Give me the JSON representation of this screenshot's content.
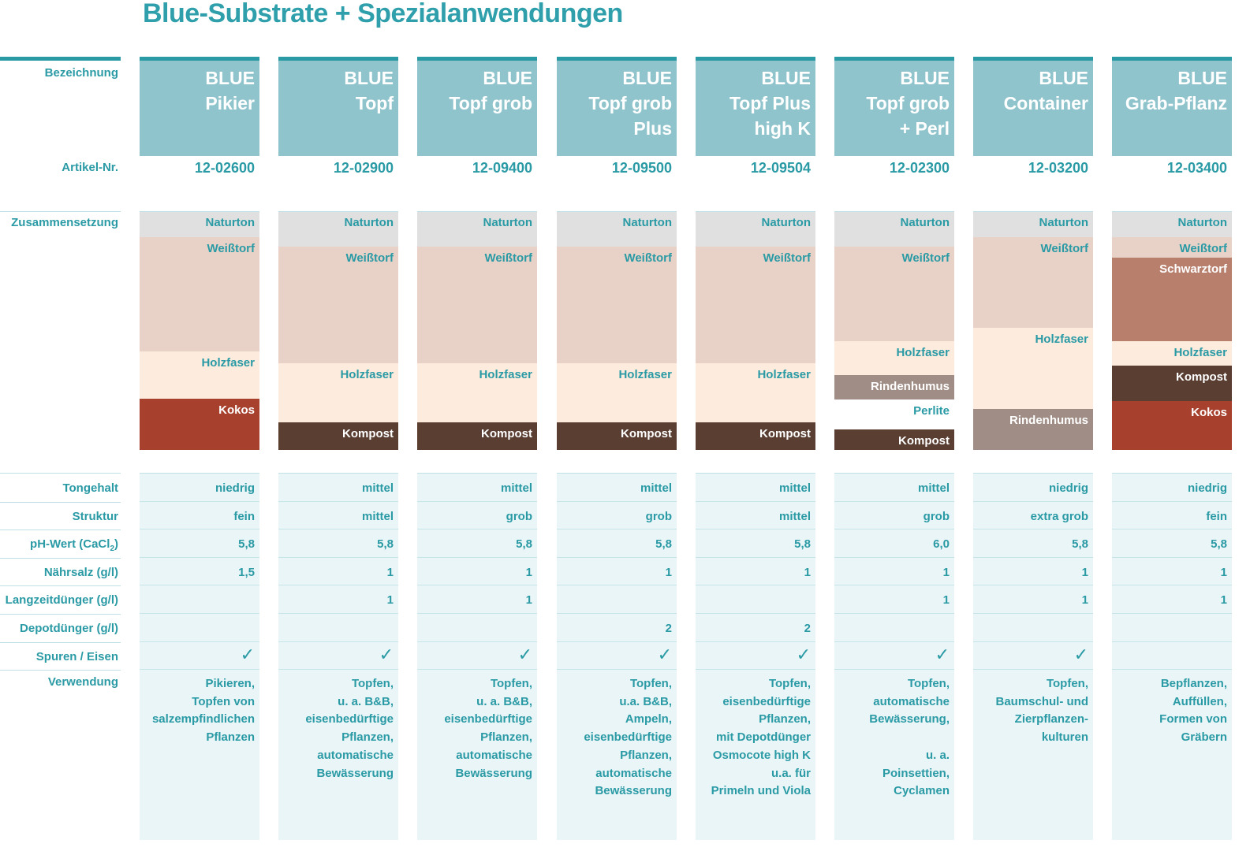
{
  "title": "Blue-Substrate + Spezialanwendungen",
  "labels": {
    "bezeichnung": "Bezeichnung",
    "artikel": "Artikel-Nr.",
    "zusammensetzung": "Zusammensetzung",
    "tongehalt": "Tongehalt",
    "struktur": "Struktur",
    "ph": "pH-Wert  (CaCl",
    "ph_sub": "2",
    "ph_end": ")",
    "naehrsalz": "Nährsalz (g/l)",
    "langzeit": "Langzeitdünger (g/l)",
    "depot": "Depotdünger (g/l)",
    "spuren": "Spuren / Eisen",
    "verwendung": "Verwendung"
  },
  "layer_colors": {
    "Naturton": "#e0e0e0",
    "Weißtorf": "#e8d2c8",
    "Holzfaser": "#fdebdd",
    "Kokos": "#a8402e",
    "Kompost": "#5a3e32",
    "Rindenhumus": "#a08e86",
    "Perlite": "#ffffff",
    "Schwarztorf": "#b87f6d"
  },
  "products": [
    {
      "name": "BLUE\nPikier",
      "artnr": "12-02600",
      "layers": [
        {
          "name": "Naturton",
          "share": 0.108
        },
        {
          "name": "Weißtorf",
          "share": 0.48
        },
        {
          "name": "Holzfaser",
          "share": 0.197
        },
        {
          "name": "Kokos",
          "share": 0.215
        }
      ],
      "tongehalt": "niedrig",
      "struktur": "fein",
      "ph": "5,8",
      "naehrsalz": "1,5",
      "langzeit": "",
      "depot": "",
      "spuren": true,
      "verwendung": "Pikieren,\nTopfen von\nsalzempfindlichen\nPflanzen"
    },
    {
      "name": "BLUE\nTopf",
      "artnr": "12-02900",
      "layers": [
        {
          "name": "Naturton",
          "share": 0.148
        },
        {
          "name": "Weißtorf",
          "share": 0.49
        },
        {
          "name": "Holzfaser",
          "share": 0.247
        },
        {
          "name": "Kompost",
          "share": 0.115
        }
      ],
      "tongehalt": "mittel",
      "struktur": "mittel",
      "ph": "5,8",
      "naehrsalz": "1",
      "langzeit": "1",
      "depot": "",
      "spuren": true,
      "verwendung": "Topfen,\nu. a. B&B,\neisenbedürftige\nPflanzen,\nautomatische\nBewässerung"
    },
    {
      "name": "BLUE\nTopf grob",
      "artnr": "12-09400",
      "layers": [
        {
          "name": "Naturton",
          "share": 0.148
        },
        {
          "name": "Weißtorf",
          "share": 0.49
        },
        {
          "name": "Holzfaser",
          "share": 0.247
        },
        {
          "name": "Kompost",
          "share": 0.115
        }
      ],
      "tongehalt": "mittel",
      "struktur": "grob",
      "ph": "5,8",
      "naehrsalz": "1",
      "langzeit": "1",
      "depot": "",
      "spuren": true,
      "verwendung": "Topfen,\nu. a. B&B,\neisenbedürftige\nPflanzen,\nautomatische\nBewässerung"
    },
    {
      "name": "BLUE\nTopf grob\nPlus",
      "artnr": "12-09500",
      "layers": [
        {
          "name": "Naturton",
          "share": 0.148
        },
        {
          "name": "Weißtorf",
          "share": 0.49
        },
        {
          "name": "Holzfaser",
          "share": 0.247
        },
        {
          "name": "Kompost",
          "share": 0.115
        }
      ],
      "tongehalt": "mittel",
      "struktur": "grob",
      "ph": "5,8",
      "naehrsalz": "1",
      "langzeit": "",
      "depot": "2",
      "spuren": true,
      "verwendung": "Topfen,\nu.a. B&B,\nAmpeln,\neisenbedürftige\nPflanzen,\nautomatische\nBewässerung"
    },
    {
      "name": "BLUE\nTopf Plus\nhigh K",
      "artnr": "12-09504",
      "layers": [
        {
          "name": "Naturton",
          "share": 0.148
        },
        {
          "name": "Weißtorf",
          "share": 0.49
        },
        {
          "name": "Holzfaser",
          "share": 0.247
        },
        {
          "name": "Kompost",
          "share": 0.115
        }
      ],
      "tongehalt": "mittel",
      "struktur": "mittel",
      "ph": "5,8",
      "naehrsalz": "1",
      "langzeit": "",
      "depot": "2",
      "spuren": true,
      "verwendung": "Topfen,\neisenbedürftige\nPflanzen,\nmit Depotdünger\nOsmocote high K\nu.a. für\nPrimeln und Viola"
    },
    {
      "name": "BLUE\nTopf grob\n+ Perl",
      "artnr": "12-02300",
      "layers": [
        {
          "name": "Naturton",
          "share": 0.148
        },
        {
          "name": "Weißtorf",
          "share": 0.395
        },
        {
          "name": "Holzfaser",
          "share": 0.145
        },
        {
          "name": "Rindenhumus",
          "share": 0.1
        },
        {
          "name": "Perlite",
          "share": 0.125
        },
        {
          "name": "Kompost",
          "share": 0.087
        }
      ],
      "tongehalt": "mittel",
      "struktur": "grob",
      "ph": "6,0",
      "naehrsalz": "1",
      "langzeit": "1",
      "depot": "",
      "spuren": true,
      "verwendung": "Topfen,\nautomatische\nBewässerung,\n\nu. a.\nPoinsettien,\nCyclamen"
    },
    {
      "name": "BLUE\nContainer",
      "artnr": "12-03200",
      "layers": [
        {
          "name": "Naturton",
          "share": 0.108
        },
        {
          "name": "Weißtorf",
          "share": 0.38
        },
        {
          "name": "Holzfaser",
          "share": 0.34
        },
        {
          "name": "Rindenhumus",
          "share": 0.172
        }
      ],
      "tongehalt": "niedrig",
      "struktur": "extra grob",
      "ph": "5,8",
      "naehrsalz": "1",
      "langzeit": "1",
      "depot": "",
      "spuren": true,
      "verwendung": "Topfen,\nBaumschul- und\nZierpflanzen-\nkulturen"
    },
    {
      "name": "BLUE\nGrab-Pflanz",
      "artnr": "12-03400",
      "layers": [
        {
          "name": "Naturton",
          "share": 0.108
        },
        {
          "name": "Weißtorf",
          "share": 0.088
        },
        {
          "name": "Schwarztorf",
          "share": 0.35
        },
        {
          "name": "Holzfaser",
          "share": 0.1
        },
        {
          "name": "Kompost",
          "share": 0.148
        },
        {
          "name": "Kokos",
          "share": 0.206
        }
      ],
      "tongehalt": "niedrig",
      "struktur": "fein",
      "ph": "5,8",
      "naehrsalz": "1",
      "langzeit": "1",
      "depot": "",
      "spuren": false,
      "verwendung": "Bepflanzen,\nAuffüllen,\nFormen von Gräbern"
    }
  ],
  "check_glyph": "✓",
  "colors": {
    "accent": "#2a9aa5",
    "header_bg": "#90c4cc",
    "property_bg": "#eaf5f7",
    "divider": "#bfe1e5"
  }
}
